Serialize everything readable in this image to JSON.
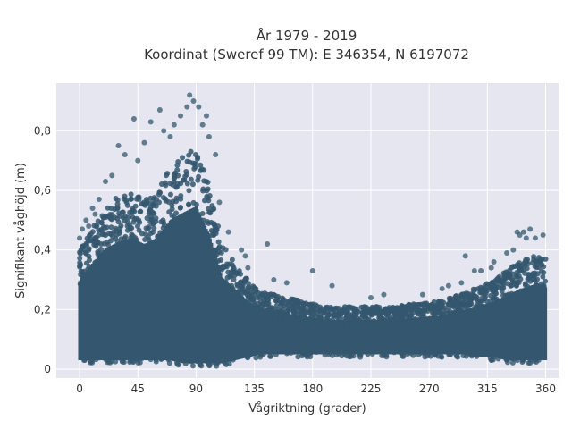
{
  "chart_data": {
    "type": "scatter",
    "title_line1": "År 1979 - 2019",
    "title_line2": "Koordinat (Sweref 99 TM): E 346354, N 6197072",
    "xlabel": "Vågriktning (grader)",
    "ylabel": "Signifikant våghöjd (m)",
    "xlim": [
      -18,
      370
    ],
    "ylim": [
      -0.03,
      0.96
    ],
    "xticks": [
      0,
      45,
      90,
      135,
      180,
      225,
      270,
      315,
      360
    ],
    "xtick_labels": [
      "0",
      "45",
      "90",
      "135",
      "180",
      "225",
      "270",
      "315",
      "360"
    ],
    "yticks": [
      0,
      0.2,
      0.4,
      0.6,
      0.8
    ],
    "ytick_labels": [
      "0",
      "0,2",
      "0,4",
      "0,6",
      "0,8"
    ],
    "grid": true,
    "point_color": "#34576f",
    "background": "#e5e6f0",
    "envelope": {
      "x": [
        0,
        10,
        20,
        30,
        40,
        50,
        60,
        70,
        80,
        90,
        100,
        110,
        120,
        130,
        140,
        150,
        160,
        170,
        180,
        190,
        200,
        220,
        240,
        260,
        280,
        300,
        310,
        320,
        330,
        340,
        350,
        360
      ],
      "lower": [
        0.03,
        0.03,
        0.03,
        0.03,
        0.03,
        0.03,
        0.03,
        0.03,
        0.02,
        0.02,
        0.02,
        0.02,
        0.03,
        0.04,
        0.05,
        0.05,
        0.05,
        0.05,
        0.05,
        0.05,
        0.05,
        0.05,
        0.05,
        0.05,
        0.05,
        0.05,
        0.04,
        0.04,
        0.03,
        0.03,
        0.03,
        0.03
      ],
      "upper": [
        0.4,
        0.48,
        0.55,
        0.58,
        0.6,
        0.57,
        0.6,
        0.68,
        0.72,
        0.75,
        0.62,
        0.42,
        0.36,
        0.3,
        0.26,
        0.25,
        0.24,
        0.23,
        0.22,
        0.21,
        0.21,
        0.21,
        0.21,
        0.22,
        0.23,
        0.26,
        0.28,
        0.3,
        0.33,
        0.36,
        0.38,
        0.37
      ]
    },
    "outliers": [
      [
        85,
        0.92
      ],
      [
        88,
        0.9
      ],
      [
        83,
        0.88
      ],
      [
        92,
        0.88
      ],
      [
        78,
        0.85
      ],
      [
        98,
        0.85
      ],
      [
        42,
        0.84
      ],
      [
        55,
        0.83
      ],
      [
        62,
        0.87
      ],
      [
        65,
        0.8
      ],
      [
        73,
        0.82
      ],
      [
        95,
        0.82
      ],
      [
        30,
        0.75
      ],
      [
        35,
        0.72
      ],
      [
        50,
        0.76
      ],
      [
        70,
        0.78
      ],
      [
        45,
        0.7
      ],
      [
        100,
        0.78
      ],
      [
        105,
        0.72
      ],
      [
        20,
        0.63
      ],
      [
        25,
        0.65
      ],
      [
        15,
        0.57
      ],
      [
        10,
        0.54
      ],
      [
        5,
        0.5
      ],
      [
        108,
        0.56
      ],
      [
        115,
        0.46
      ],
      [
        125,
        0.4
      ],
      [
        128,
        0.38
      ],
      [
        130,
        0.34
      ],
      [
        145,
        0.42
      ],
      [
        150,
        0.3
      ],
      [
        160,
        0.29
      ],
      [
        180,
        0.33
      ],
      [
        195,
        0.28
      ],
      [
        225,
        0.24
      ],
      [
        235,
        0.25
      ],
      [
        265,
        0.25
      ],
      [
        280,
        0.27
      ],
      [
        285,
        0.28
      ],
      [
        295,
        0.29
      ],
      [
        298,
        0.38
      ],
      [
        305,
        0.33
      ],
      [
        310,
        0.33
      ],
      [
        318,
        0.34
      ],
      [
        320,
        0.36
      ],
      [
        330,
        0.39
      ],
      [
        335,
        0.4
      ],
      [
        338,
        0.46
      ],
      [
        340,
        0.45
      ],
      [
        343,
        0.46
      ],
      [
        345,
        0.44
      ],
      [
        348,
        0.47
      ],
      [
        352,
        0.44
      ],
      [
        358,
        0.45
      ],
      [
        0,
        0.44
      ],
      [
        2,
        0.47
      ],
      [
        7,
        0.48
      ],
      [
        12,
        0.52
      ]
    ]
  }
}
